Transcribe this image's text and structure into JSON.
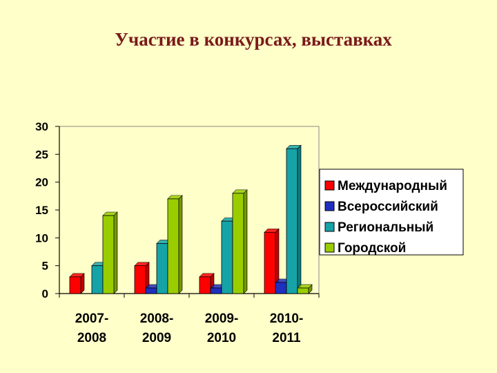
{
  "page": {
    "title": "Участие в конкурсах, выставках"
  },
  "chart_data": {
    "type": "bar",
    "categories": [
      [
        "2007-",
        "2008"
      ],
      [
        "2008-",
        "2009"
      ],
      [
        "2009-",
        "2010"
      ],
      [
        "2010-",
        "2011"
      ]
    ],
    "series": [
      {
        "name": "Международный",
        "color": "#ff0000",
        "values": [
          3,
          5,
          3,
          11
        ]
      },
      {
        "name": "Всероссийский",
        "color": "#1f2fc0",
        "values": [
          0,
          1,
          1,
          2
        ]
      },
      {
        "name": "Региональный",
        "color": "#16a3a8",
        "values": [
          5,
          9,
          13,
          26
        ]
      },
      {
        "name": "Городской",
        "color": "#9acd00",
        "values": [
          14,
          17,
          18,
          1
        ]
      }
    ],
    "ylim": [
      0,
      30
    ],
    "yticks": [
      "0",
      "5",
      "10",
      "15",
      "20",
      "25",
      "30"
    ],
    "grid": false,
    "legend": "right"
  }
}
